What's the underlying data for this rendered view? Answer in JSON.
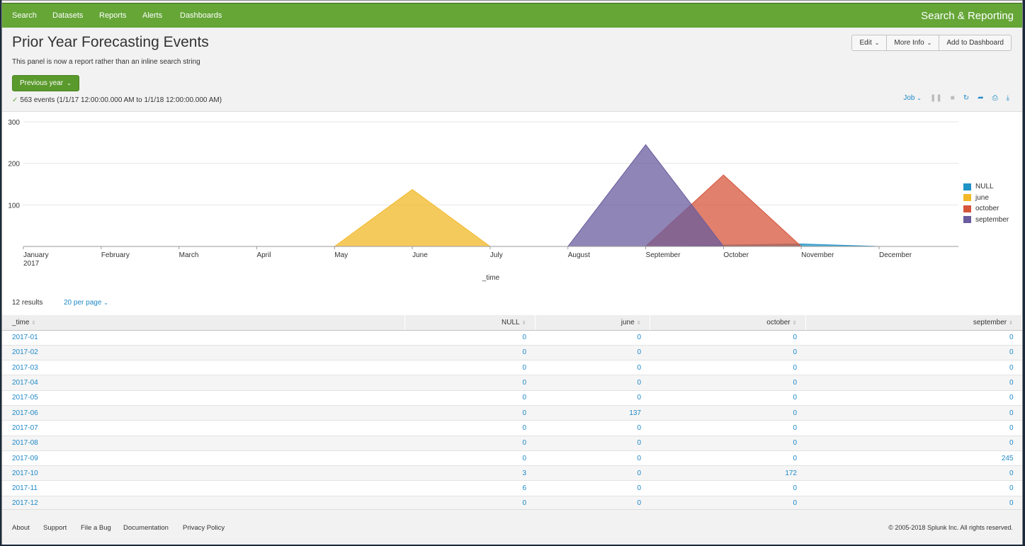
{
  "nav": {
    "items": [
      "Search",
      "Datasets",
      "Reports",
      "Alerts",
      "Dashboards"
    ],
    "app_title": "Search & Reporting"
  },
  "header": {
    "title": "Prior Year Forecasting Events",
    "description": "This panel is now a report rather than an inline search string",
    "edit_label": "Edit",
    "more_info_label": "More Info",
    "add_dashboard_label": "Add to Dashboard"
  },
  "time_picker": {
    "label": "Previous year"
  },
  "status": {
    "text": "563 events (1/1/17 12:00:00.000 AM to 1/1/18 12:00:00.000 AM)"
  },
  "job": {
    "label": "Job"
  },
  "colors": {
    "NULL": "#1e93c6",
    "june": "#f2b827",
    "october": "#d6563c",
    "september": "#6a5c9e",
    "nav": "#65a637",
    "link": "#1e88c8"
  },
  "chart_data": {
    "type": "area",
    "x": [
      "January",
      "February",
      "March",
      "April",
      "May",
      "June",
      "July",
      "August",
      "September",
      "October",
      "November",
      "December"
    ],
    "x_year_label": "2017",
    "xlabel": "_time",
    "ylabel": "",
    "ylim": [
      0,
      300
    ],
    "yticks": [
      100,
      200,
      300
    ],
    "legend_position": "right",
    "series": [
      {
        "name": "NULL",
        "values": [
          0,
          0,
          0,
          0,
          0,
          0,
          0,
          0,
          0,
          3,
          6,
          0
        ]
      },
      {
        "name": "june",
        "values": [
          0,
          0,
          0,
          0,
          0,
          137,
          0,
          0,
          0,
          0,
          0,
          0
        ]
      },
      {
        "name": "october",
        "values": [
          0,
          0,
          0,
          0,
          0,
          0,
          0,
          0,
          0,
          172,
          0,
          0
        ]
      },
      {
        "name": "september",
        "values": [
          0,
          0,
          0,
          0,
          0,
          0,
          0,
          0,
          245,
          0,
          0,
          0
        ]
      }
    ]
  },
  "results": {
    "count_label": "12 results",
    "per_page_label": "20 per page"
  },
  "table": {
    "columns": [
      "_time",
      "NULL",
      "june",
      "october",
      "september"
    ],
    "rows": [
      [
        "2017-01",
        "0",
        "0",
        "0",
        "0"
      ],
      [
        "2017-02",
        "0",
        "0",
        "0",
        "0"
      ],
      [
        "2017-03",
        "0",
        "0",
        "0",
        "0"
      ],
      [
        "2017-04",
        "0",
        "0",
        "0",
        "0"
      ],
      [
        "2017-05",
        "0",
        "0",
        "0",
        "0"
      ],
      [
        "2017-06",
        "0",
        "137",
        "0",
        "0"
      ],
      [
        "2017-07",
        "0",
        "0",
        "0",
        "0"
      ],
      [
        "2017-08",
        "0",
        "0",
        "0",
        "0"
      ],
      [
        "2017-09",
        "0",
        "0",
        "0",
        "245"
      ],
      [
        "2017-10",
        "3",
        "0",
        "172",
        "0"
      ],
      [
        "2017-11",
        "6",
        "0",
        "0",
        "0"
      ],
      [
        "2017-12",
        "0",
        "0",
        "0",
        "0"
      ]
    ]
  },
  "footer": {
    "links": [
      "About",
      "Support",
      "File a Bug",
      "Documentation",
      "Privacy Policy"
    ],
    "copyright": "© 2005-2018 Splunk Inc. All rights reserved."
  }
}
